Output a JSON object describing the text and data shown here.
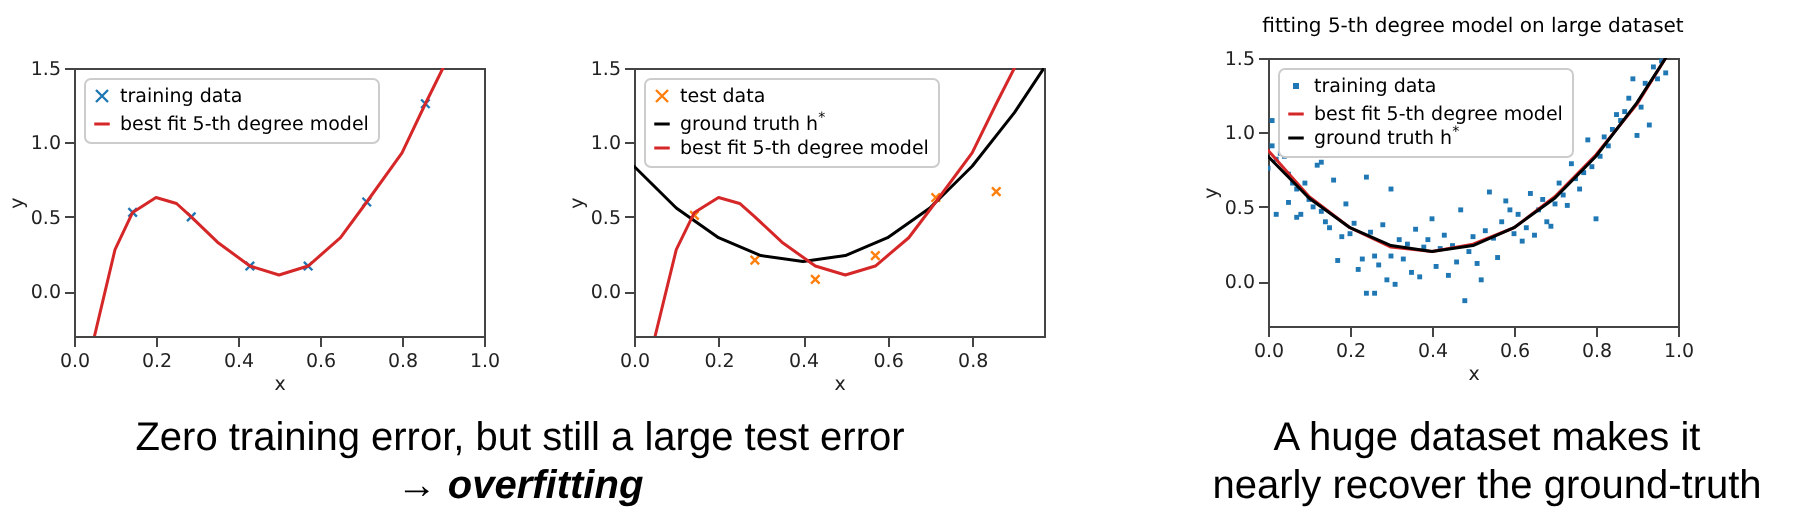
{
  "chart_data": [
    {
      "type": "line",
      "xlabel": "x",
      "ylabel": "y",
      "xlim": [
        0,
        1
      ],
      "ylim": [
        -0.3,
        1.5
      ],
      "xticks": [
        {
          "value": 0,
          "label": "0.0"
        },
        {
          "value": 0.2,
          "label": "0.2"
        },
        {
          "value": 0.4,
          "label": "0.4"
        },
        {
          "value": 0.6,
          "label": "0.6"
        },
        {
          "value": 0.8,
          "label": "0.8"
        },
        {
          "value": 1,
          "label": "1.0"
        }
      ],
      "yticks": [
        {
          "value": 0,
          "label": "0.0"
        },
        {
          "value": 0.5,
          "label": "0.5"
        },
        {
          "value": 1,
          "label": "1.0"
        },
        {
          "value": 1.5,
          "label": "1.5"
        }
      ],
      "legend": "top left",
      "grid": false,
      "series": [
        {
          "name": "training data",
          "type": "scatter",
          "marker": "cross",
          "color": "#1f77b4",
          "x": [
            0.143,
            0.286,
            0.429,
            0.571,
            0.714,
            0.857
          ],
          "values": [
            0.53,
            0.5,
            0.17,
            0.17,
            0.6,
            1.26
          ]
        },
        {
          "name": "best fit 5-th degree model",
          "type": "line",
          "color": "#d62728",
          "x": [
            0.05,
            0.1,
            0.143,
            0.2,
            0.25,
            0.286,
            0.35,
            0.429,
            0.5,
            0.571,
            0.65,
            0.714,
            0.8,
            0.857,
            0.9
          ],
          "values": [
            -0.3,
            0.28,
            0.53,
            0.63,
            0.59,
            0.5,
            0.33,
            0.17,
            0.11,
            0.17,
            0.36,
            0.6,
            0.93,
            1.26,
            1.5
          ]
        }
      ],
      "annotations": [
        "Zero training error, but still a large test error",
        "→ overfitting"
      ]
    },
    {
      "type": "line",
      "xlabel": "x",
      "ylabel": "y",
      "xlim": [
        0,
        0.97
      ],
      "ylim": [
        -0.3,
        1.5
      ],
      "xticks": [
        {
          "value": 0,
          "label": "0.0"
        },
        {
          "value": 0.2,
          "label": "0.2"
        },
        {
          "value": 0.4,
          "label": "0.4"
        },
        {
          "value": 0.6,
          "label": "0.6"
        },
        {
          "value": 0.8,
          "label": "0.8"
        }
      ],
      "yticks": [
        {
          "value": 0,
          "label": "0.0"
        },
        {
          "value": 0.5,
          "label": "0.5"
        },
        {
          "value": 1,
          "label": "1.0"
        },
        {
          "value": 1.5,
          "label": "1.5"
        }
      ],
      "legend": "top left",
      "grid": false,
      "series": [
        {
          "name": "test data",
          "type": "scatter",
          "marker": "cross",
          "color": "#ff7f0e",
          "x": [
            0.143,
            0.286,
            0.429,
            0.571,
            0.714,
            0.857
          ],
          "values": [
            0.51,
            0.21,
            0.08,
            0.24,
            0.63,
            0.67
          ]
        },
        {
          "name": "ground truth h$^{*}$",
          "type": "line",
          "color": "#000000",
          "x": [
            0,
            0.1,
            0.2,
            0.3,
            0.4,
            0.5,
            0.6,
            0.7,
            0.8,
            0.9,
            0.97
          ],
          "values": [
            0.84,
            0.56,
            0.36,
            0.24,
            0.2,
            0.24,
            0.36,
            0.56,
            0.84,
            1.2,
            1.5
          ]
        },
        {
          "name": "best fit 5-th degree model",
          "type": "line",
          "color": "#d62728",
          "x": [
            0.05,
            0.1,
            0.143,
            0.2,
            0.25,
            0.286,
            0.35,
            0.429,
            0.5,
            0.571,
            0.65,
            0.714,
            0.8,
            0.857,
            0.9
          ],
          "values": [
            -0.3,
            0.28,
            0.53,
            0.63,
            0.59,
            0.5,
            0.33,
            0.17,
            0.11,
            0.17,
            0.36,
            0.6,
            0.93,
            1.26,
            1.5
          ]
        }
      ]
    },
    {
      "type": "line",
      "title": "fitting 5-th degree model on large dataset",
      "xlabel": "x",
      "ylabel": "y",
      "xlim": [
        0,
        1
      ],
      "ylim": [
        -0.3,
        1.5
      ],
      "xticks": [
        {
          "value": 0,
          "label": "0.0"
        },
        {
          "value": 0.2,
          "label": "0.2"
        },
        {
          "value": 0.4,
          "label": "0.4"
        },
        {
          "value": 0.6,
          "label": "0.6"
        },
        {
          "value": 0.8,
          "label": "0.8"
        },
        {
          "value": 1,
          "label": "1.0"
        }
      ],
      "yticks": [
        {
          "value": 0,
          "label": "0.0"
        },
        {
          "value": 0.5,
          "label": "0.5"
        },
        {
          "value": 1,
          "label": "1.0"
        },
        {
          "value": 1.5,
          "label": "1.5"
        }
      ],
      "legend": "top left",
      "grid": false,
      "series": [
        {
          "name": "training data",
          "type": "scatter",
          "marker": "square",
          "color": "#1f77b4",
          "x": [
            0,
            0.01,
            0.01,
            0.02,
            0.02,
            0.03,
            0.04,
            0.05,
            0.05,
            0.06,
            0.07,
            0.07,
            0.08,
            0.09,
            0.1,
            0.11,
            0.12,
            0.13,
            0.13,
            0.14,
            0.15,
            0.16,
            0.17,
            0.18,
            0.19,
            0.2,
            0.21,
            0.22,
            0.23,
            0.24,
            0.24,
            0.25,
            0.26,
            0.26,
            0.27,
            0.28,
            0.29,
            0.3,
            0.3,
            0.31,
            0.32,
            0.33,
            0.34,
            0.35,
            0.36,
            0.37,
            0.38,
            0.39,
            0.4,
            0.41,
            0.42,
            0.43,
            0.44,
            0.45,
            0.46,
            0.47,
            0.48,
            0.49,
            0.5,
            0.51,
            0.52,
            0.53,
            0.54,
            0.55,
            0.56,
            0.57,
            0.58,
            0.59,
            0.6,
            0.61,
            0.62,
            0.63,
            0.64,
            0.65,
            0.66,
            0.67,
            0.68,
            0.69,
            0.7,
            0.71,
            0.72,
            0.73,
            0.74,
            0.75,
            0.76,
            0.77,
            0.78,
            0.79,
            0.8,
            0.81,
            0.82,
            0.83,
            0.84,
            0.85,
            0.86,
            0.87,
            0.88,
            0.89,
            0.9,
            0.91,
            0.92,
            0.93,
            0.94,
            0.95,
            0.96,
            0.97
          ],
          "values": [
            0.76,
            0.91,
            1.08,
            0.45,
            0.82,
            0.86,
            0.84,
            0.72,
            0.53,
            0.66,
            0.43,
            0.62,
            0.45,
            0.66,
            0.55,
            0.5,
            0.78,
            0.8,
            0.47,
            0.4,
            0.36,
            0.68,
            0.14,
            0.3,
            0.52,
            0.32,
            0.39,
            0.08,
            0.15,
            0.7,
            -0.08,
            0.33,
            0.17,
            -0.08,
            0.11,
            0.38,
            0.01,
            0.17,
            0.62,
            -0.02,
            0.28,
            0.15,
            0.25,
            0.06,
            0.35,
            0.03,
            0.23,
            0.28,
            0.42,
            0.1,
            0.22,
            0.31,
            0.04,
            0.24,
            0.13,
            0.48,
            -0.13,
            0.2,
            0.3,
            0.12,
            0.01,
            0.34,
            0.6,
            0.29,
            0.16,
            0.4,
            0.54,
            0.48,
            0.32,
            0.45,
            0.27,
            0.36,
            0.59,
            0.31,
            0.48,
            0.55,
            0.4,
            0.37,
            0.52,
            0.66,
            0.58,
            0.51,
            0.79,
            0.69,
            0.62,
            0.73,
            0.95,
            0.77,
            0.42,
            0.84,
            0.97,
            0.91,
            1.02,
            1.12,
            1.08,
            1.14,
            1.23,
            1.36,
            0.98,
            1.17,
            1.33,
            1.05,
            1.44,
            1.36,
            1.48,
            1.4
          ]
        },
        {
          "name": "best fit 5-th degree model",
          "type": "line",
          "color": "#d62728",
          "x": [
            0,
            0.1,
            0.2,
            0.3,
            0.4,
            0.5,
            0.6,
            0.7,
            0.8,
            0.9,
            0.97
          ],
          "values": [
            0.88,
            0.57,
            0.36,
            0.23,
            0.2,
            0.25,
            0.36,
            0.57,
            0.85,
            1.19,
            1.5
          ]
        },
        {
          "name": "ground truth h$^{*}$",
          "type": "line",
          "color": "#000000",
          "x": [
            0,
            0.1,
            0.2,
            0.3,
            0.4,
            0.5,
            0.6,
            0.7,
            0.8,
            0.9,
            0.97
          ],
          "values": [
            0.84,
            0.56,
            0.36,
            0.24,
            0.2,
            0.24,
            0.36,
            0.56,
            0.84,
            1.2,
            1.5
          ]
        }
      ],
      "annotations": [
        "A huge dataset makes it",
        "nearly recover the ground-truth"
      ]
    }
  ]
}
